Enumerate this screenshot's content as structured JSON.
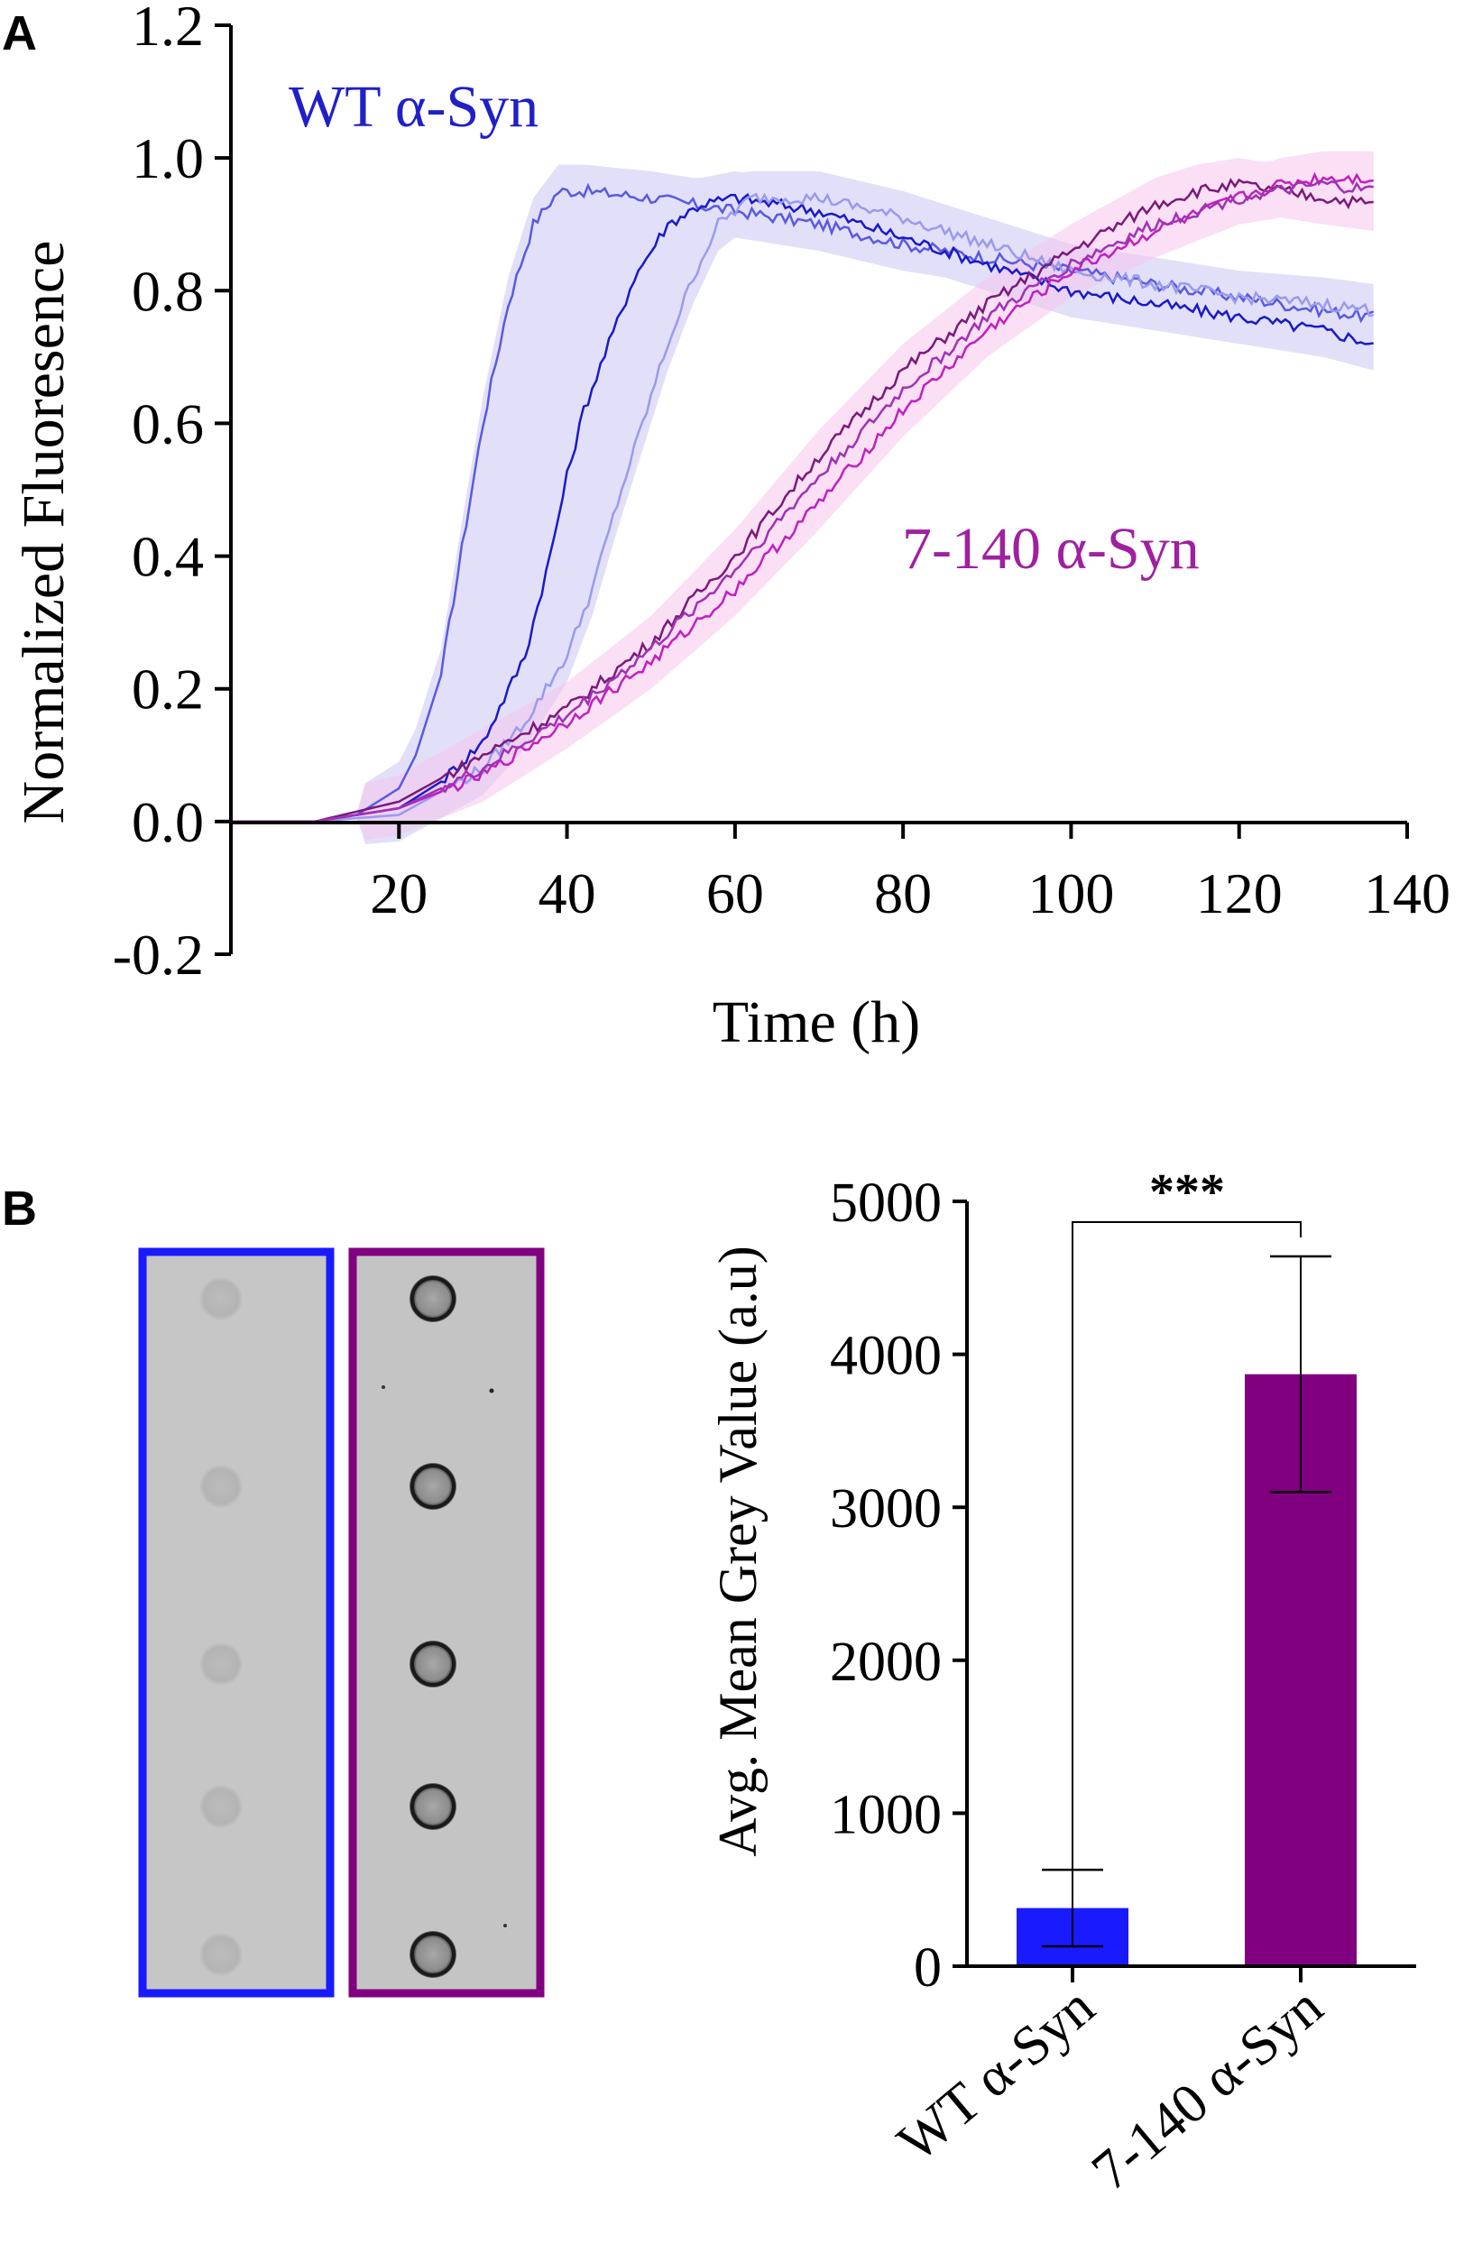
{
  "panel_a_label": "A",
  "panel_b_label": "B",
  "chart_data": [
    {
      "type": "line",
      "panel": "A",
      "title": "",
      "xlabel": "Time (h)",
      "ylabel": "Normalized Fluoresence",
      "xlim": [
        0,
        140
      ],
      "ylim": [
        -0.2,
        1.2
      ],
      "xticks": [
        20,
        40,
        60,
        80,
        100,
        120,
        140
      ],
      "yticks": [
        -0.2,
        0.0,
        0.2,
        0.4,
        0.6,
        0.8,
        1.0,
        1.2
      ],
      "xtick_labels": [
        "20",
        "40",
        "60",
        "80",
        "100",
        "120",
        "140"
      ],
      "ytick_labels": [
        "-0.2",
        "0.0",
        "0.2",
        "0.4",
        "0.6",
        "0.8",
        "1.0",
        "1.2"
      ],
      "annotations": [
        "WT α-Syn",
        "7-140 α-Syn"
      ],
      "band_color_wt": "#c9c6f2",
      "band_color_trunc": "#f6c4ec",
      "series": [
        {
          "name": "WT α-Syn replicate 1",
          "color": "#5a5ae0",
          "x": [
            0,
            10,
            15,
            20,
            22,
            25,
            28,
            30,
            33,
            36,
            39,
            42,
            50,
            60,
            70,
            80,
            90,
            100,
            110,
            120,
            130,
            136
          ],
          "y": [
            0.0,
            0.0,
            0.01,
            0.05,
            0.1,
            0.22,
            0.45,
            0.6,
            0.78,
            0.9,
            0.95,
            0.95,
            0.94,
            0.92,
            0.9,
            0.87,
            0.85,
            0.83,
            0.81,
            0.79,
            0.77,
            0.76
          ]
        },
        {
          "name": "WT α-Syn replicate 2",
          "color": "#1a1ac8",
          "x": [
            0,
            10,
            20,
            25,
            30,
            35,
            38,
            40,
            42,
            45,
            48,
            52,
            56,
            60,
            70,
            80,
            90,
            100,
            110,
            120,
            130,
            136
          ],
          "y": [
            0.0,
            0.0,
            0.02,
            0.06,
            0.12,
            0.25,
            0.4,
            0.52,
            0.62,
            0.72,
            0.82,
            0.9,
            0.93,
            0.94,
            0.92,
            0.88,
            0.84,
            0.8,
            0.78,
            0.76,
            0.74,
            0.72
          ]
        },
        {
          "name": "WT α-Syn replicate 3",
          "color": "#9a9aee",
          "x": [
            0,
            10,
            20,
            30,
            35,
            40,
            43,
            46,
            49,
            52,
            55,
            58,
            62,
            70,
            80,
            90,
            100,
            110,
            120,
            130,
            136
          ],
          "y": [
            0.0,
            0.0,
            0.01,
            0.08,
            0.15,
            0.25,
            0.35,
            0.48,
            0.6,
            0.72,
            0.82,
            0.9,
            0.94,
            0.94,
            0.91,
            0.87,
            0.83,
            0.81,
            0.79,
            0.78,
            0.77
          ]
        },
        {
          "name": "7-140 α-Syn replicate 1",
          "color": "#7a1a7a",
          "x": [
            0,
            10,
            20,
            30,
            40,
            50,
            60,
            70,
            80,
            90,
            100,
            110,
            115,
            120,
            125,
            130,
            136
          ],
          "y": [
            0.0,
            0.0,
            0.03,
            0.1,
            0.17,
            0.27,
            0.4,
            0.55,
            0.68,
            0.78,
            0.86,
            0.93,
            0.95,
            0.96,
            0.95,
            0.94,
            0.93
          ]
        },
        {
          "name": "7-140 α-Syn replicate 2",
          "color": "#c020c0",
          "x": [
            0,
            10,
            20,
            30,
            40,
            50,
            60,
            70,
            80,
            90,
            100,
            110,
            120,
            125,
            130,
            136
          ],
          "y": [
            0.0,
            0.0,
            0.02,
            0.07,
            0.15,
            0.24,
            0.35,
            0.48,
            0.62,
            0.74,
            0.83,
            0.89,
            0.94,
            0.96,
            0.97,
            0.97
          ]
        },
        {
          "name": "7-140 α-Syn replicate 3",
          "color": "#a032b4",
          "x": [
            0,
            10,
            20,
            30,
            40,
            50,
            60,
            70,
            80,
            90,
            100,
            110,
            120,
            130,
            136
          ],
          "y": [
            0.0,
            0.0,
            0.02,
            0.08,
            0.16,
            0.26,
            0.38,
            0.52,
            0.65,
            0.76,
            0.84,
            0.9,
            0.94,
            0.96,
            0.95
          ]
        }
      ]
    },
    {
      "type": "bar",
      "panel": "B",
      "title": "",
      "xlabel": "",
      "ylabel": "Avg. Mean Grey Value (a.u)",
      "ylim": [
        0,
        5000
      ],
      "yticks": [
        0,
        1000,
        2000,
        3000,
        4000,
        5000
      ],
      "ytick_labels": [
        "0",
        "1000",
        "2000",
        "3000",
        "4000",
        "5000"
      ],
      "categories": [
        "WT α-Syn",
        "7-140 α-Syn"
      ],
      "values": [
        380,
        3870
      ],
      "error": [
        250,
        770
      ],
      "colors": [
        "#1a1aff",
        "#800080"
      ],
      "significance": "***"
    }
  ],
  "dot_blot": {
    "wt_frame_color": "#1a1aff",
    "trunc_frame_color": "#800080",
    "wt_dots": 5,
    "trunc_dots": 5
  }
}
